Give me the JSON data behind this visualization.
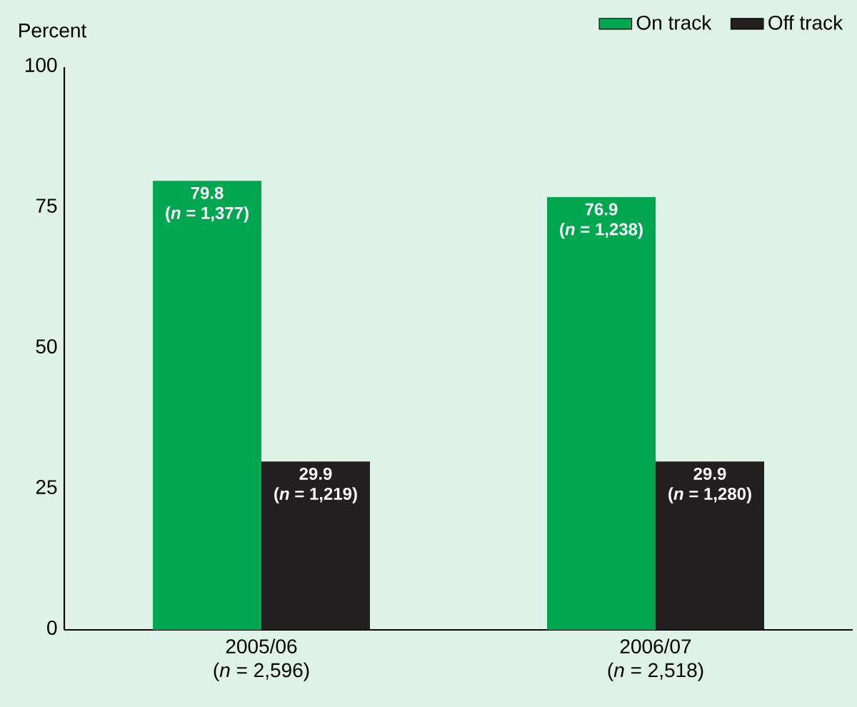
{
  "chart_data": {
    "type": "bar",
    "ylabel": "Percent",
    "categories": [
      "2005/06\n(*n* = 2,596)",
      "2006/07\n(*n* = 2,518)"
    ],
    "series": [
      {
        "name": "On track",
        "color": "#00a650",
        "values": [
          79.8,
          76.9
        ],
        "value_labels": [
          "79.8\n(*n* = 1,377)",
          "76.9\n(*n* = 1,238)"
        ]
      },
      {
        "name": "Off track",
        "color": "#231f20",
        "values": [
          29.9,
          29.9
        ],
        "value_labels": [
          "29.9\n(*n* = 1,219)",
          "29.9\n(*n* = 1,280)"
        ]
      }
    ],
    "ylim": [
      0,
      100
    ],
    "yticks": [
      0,
      25,
      50,
      75,
      100
    ],
    "legend": "top right"
  }
}
